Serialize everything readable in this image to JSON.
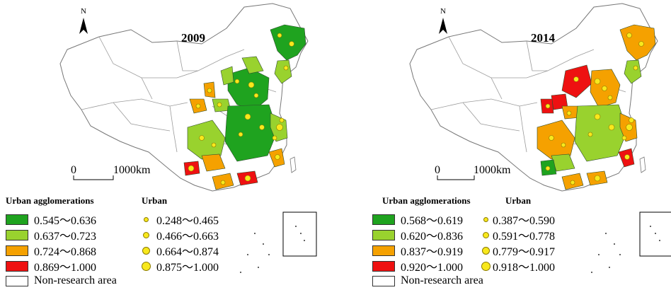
{
  "maps": [
    {
      "year": "2009",
      "north": "N",
      "scale": {
        "zero": "0",
        "distance": "1000km"
      },
      "legend": {
        "agglomeration_title": "Urban agglomerations",
        "urban_title": "Urban",
        "agglomeration_classes": [
          {
            "label": "0.545～0.636",
            "color": "#1fa31f"
          },
          {
            "label": "0.637～0.723",
            "color": "#99d22e"
          },
          {
            "label": "0.724～0.868",
            "color": "#f5a100"
          },
          {
            "label": "0.869～1.000",
            "color": "#ee1111"
          }
        ],
        "urban_classes": [
          {
            "label": "0.248～0.465",
            "size": 7
          },
          {
            "label": "0.466～0.663",
            "size": 9
          },
          {
            "label": "0.664～0.874",
            "size": 11
          },
          {
            "label": "0.875～1.000",
            "size": 13
          }
        ],
        "non_research": {
          "label": "Non-research area",
          "color": "#ffffff"
        }
      }
    },
    {
      "year": "2014",
      "north": "N",
      "scale": {
        "zero": "0",
        "distance": "1000km"
      },
      "legend": {
        "agglomeration_title": "Urban agglomerations",
        "urban_title": "Urban",
        "agglomeration_classes": [
          {
            "label": "0.568～0.619",
            "color": "#1fa31f"
          },
          {
            "label": "0.620～0.836",
            "color": "#99d22e"
          },
          {
            "label": "0.837～0.919",
            "color": "#f5a100"
          },
          {
            "label": "0.920～1.000",
            "color": "#ee1111"
          }
        ],
        "urban_classes": [
          {
            "label": "0.387～0.590",
            "size": 7
          },
          {
            "label": "0.591～0.778",
            "size": 9
          },
          {
            "label": "0.779～0.917",
            "size": 11
          },
          {
            "label": "0.918～1.000",
            "size": 13
          }
        ],
        "non_research": {
          "label": "Non-research area",
          "color": "#ffffff"
        }
      }
    }
  ],
  "dot_color": "#f8e81c"
}
